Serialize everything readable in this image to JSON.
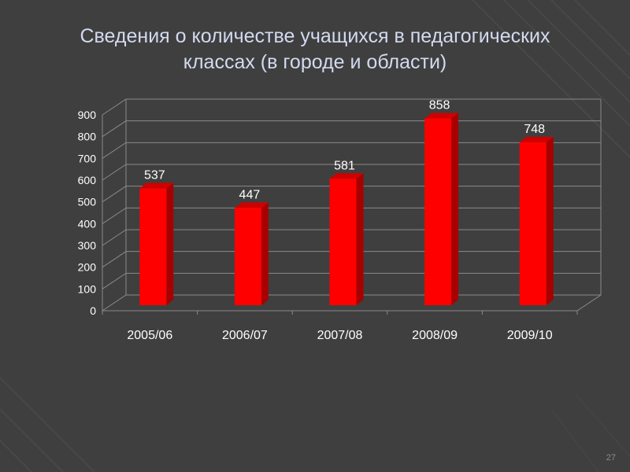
{
  "slide": {
    "title_line1": "Сведения о количестве учащихся в педагогических",
    "title_line2": "классах (в городе и области)",
    "page_number": "27"
  },
  "colors": {
    "background": "#3f3f3f",
    "bar_front": "#ff0000",
    "bar_side": "#a80000",
    "bar_top": "#d10000",
    "text": "#ffffff",
    "gridline": "#8a8a8a"
  },
  "chart_data": {
    "type": "bar",
    "style": "3d-column",
    "categories": [
      "2005/06",
      "2006/07",
      "2007/08",
      "2008/09",
      "2009/10"
    ],
    "values": [
      537,
      447,
      581,
      858,
      748
    ],
    "data_labels": [
      "537",
      "447",
      "581",
      "858",
      "748"
    ],
    "ylim": [
      0,
      900
    ],
    "y_ticks": [
      0,
      100,
      200,
      300,
      400,
      500,
      600,
      700,
      800,
      900
    ],
    "y_tick_labels": [
      "0",
      "100",
      "200",
      "300",
      "400",
      "500",
      "600",
      "700",
      "800",
      "900"
    ],
    "grid": true,
    "legend": "none",
    "xlabel": "",
    "ylabel": ""
  }
}
